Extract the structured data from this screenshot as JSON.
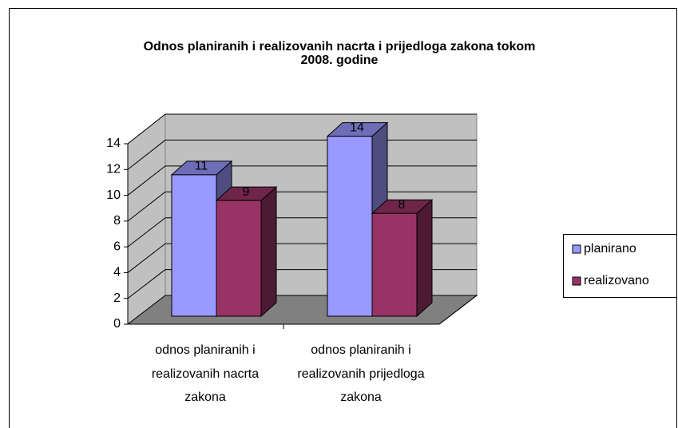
{
  "chart_data": {
    "type": "bar3d",
    "title": "Odnos planiranih i realizovanih nacrta i prijedloga zakona tokom 2008. godine",
    "categories": [
      "odnos planiranih i realizovanih nacrta zakona",
      "odnos planiranih i realizovanih prijedloga zakona"
    ],
    "series": [
      {
        "name": "planirano",
        "color": "#9999ff",
        "values": [
          11,
          14
        ]
      },
      {
        "name": "realizovano",
        "color": "#993366",
        "values": [
          9,
          8
        ]
      }
    ],
    "ylim": [
      0,
      14
    ],
    "yticks": [
      0,
      2,
      4,
      6,
      8,
      10,
      12,
      14
    ],
    "grid": true,
    "legend": "right"
  }
}
